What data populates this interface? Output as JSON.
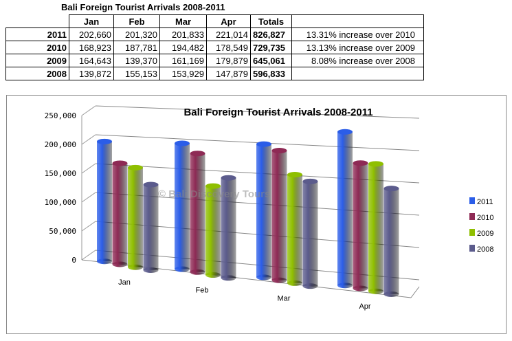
{
  "table": {
    "title": "Bali Foreign Tourist Arrivals 2008-2011",
    "headers": [
      "Jan",
      "Feb",
      "Mar",
      "Apr",
      "Totals"
    ],
    "rows": [
      {
        "year": "2011",
        "values": [
          "202,660",
          "201,320",
          "201,833",
          "221,014"
        ],
        "total": "826,827",
        "note": "13.31% increase over 2010"
      },
      {
        "year": "2010",
        "values": [
          "168,923",
          "187,781",
          "194,482",
          "178,549"
        ],
        "total": "729,735",
        "note": "13.13% increase over 2009"
      },
      {
        "year": "2009",
        "values": [
          "164,643",
          "139,370",
          "161,169",
          "179,879"
        ],
        "total": "645,061",
        "note": "8.08% increase over 2008"
      },
      {
        "year": "2008",
        "values": [
          "139,872",
          "155,153",
          "153,929",
          "147,879"
        ],
        "total": "596,833",
        "note": ""
      }
    ]
  },
  "chart_data": {
    "type": "bar",
    "title": "Bali Foreign Tourist Arrivals 2008-2011",
    "watermark": "© Bali Discovery Tours",
    "categories": [
      "Jan",
      "Feb",
      "Mar",
      "Apr"
    ],
    "series": [
      {
        "name": "2011",
        "color": "#2b5de8",
        "values": [
          202660,
          201320,
          201833,
          221014
        ]
      },
      {
        "name": "2010",
        "color": "#8e2a55",
        "values": [
          168923,
          187781,
          194482,
          178549
        ]
      },
      {
        "name": "2009",
        "color": "#8fbf00",
        "values": [
          164643,
          139370,
          161169,
          179879
        ]
      },
      {
        "name": "2008",
        "color": "#5b5b8c",
        "values": [
          139872,
          155153,
          153929,
          147879
        ]
      }
    ],
    "yticks": [
      "0",
      "50,000",
      "100,000",
      "150,000",
      "200,000",
      "250,000"
    ],
    "ylim": [
      0,
      250000
    ],
    "legend": "right",
    "grid": true
  }
}
